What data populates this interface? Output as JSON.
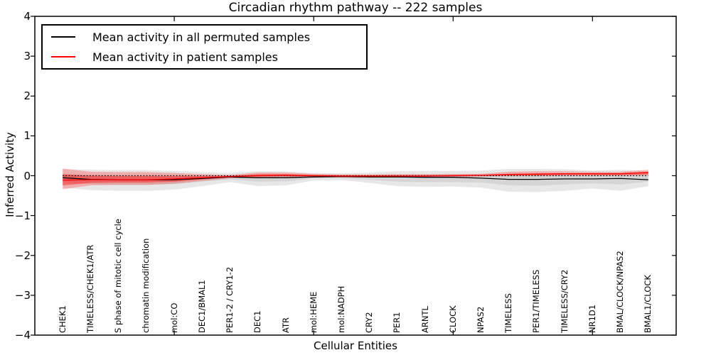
{
  "title": "Circadian rhythm pathway -- 222 samples",
  "legend": {
    "items": [
      {
        "label": "Mean activity in all permuted samples",
        "color": "#000000"
      },
      {
        "label": "Mean activity in patient samples",
        "color": "#ff0000"
      }
    ]
  },
  "axes": {
    "ylabel": "Inferred Activity",
    "xlabel": "Cellular Entities",
    "y_tick_labels": [
      "4",
      "3",
      "2",
      "1",
      "0",
      "−1",
      "−2",
      "−3",
      "−4"
    ],
    "y_tick_values": [
      4,
      3,
      2,
      1,
      0,
      -1,
      -2,
      -3,
      -4
    ],
    "x_major_tick_positions": [
      5,
      10,
      15,
      20
    ]
  },
  "chart_data": {
    "type": "line",
    "title": "Circadian rhythm pathway -- 222 samples",
    "xlabel": "Cellular Entities",
    "ylabel": "Inferred Activity",
    "ylim": [
      -4,
      4
    ],
    "grid": false,
    "legend_position": "upper left",
    "x_tick_rotation": 90,
    "categories": [
      "CHEK1",
      "TIMELESS/CHEK1/ATR",
      "S phase of mitotic cell cycle",
      "chromatin modification",
      "mol:CO",
      "DEC1/BMAL1",
      "PER1-2 / CRY1-2",
      "DEC1",
      "ATR",
      "mol:HEME",
      "mol:NADPH",
      "CRY2",
      "PER1",
      "ARNTL",
      "CLOCK",
      "NPAS2",
      "TIMELESS",
      "PER1/TIMELESS",
      "TIMELESS/CRY2",
      "NR1D1",
      "BMAL/CLOCK/NPAS2",
      "BMAL1/CLOCK"
    ],
    "series": [
      {
        "name": "Mean activity in all permuted samples",
        "color": "#000000",
        "style": "solid",
        "values": [
          -0.05,
          -0.09,
          -0.1,
          -0.1,
          -0.1,
          -0.07,
          -0.03,
          -0.05,
          -0.05,
          -0.03,
          -0.02,
          -0.03,
          -0.03,
          -0.04,
          -0.04,
          -0.06,
          -0.09,
          -0.09,
          -0.08,
          -0.08,
          -0.07,
          -0.1
        ]
      },
      {
        "name": "Mean activity in patient samples",
        "color": "#ff0000",
        "style": "solid",
        "values": [
          -0.11,
          -0.1,
          -0.1,
          -0.1,
          -0.08,
          -0.05,
          -0.02,
          0.0,
          0.01,
          0.0,
          -0.01,
          -0.01,
          -0.01,
          -0.01,
          0.0,
          0.01,
          0.03,
          0.04,
          0.05,
          0.05,
          0.05,
          0.08
        ]
      },
      {
        "name": "zero-reference",
        "color": "#000000",
        "style": "dotted",
        "values": [
          0,
          0,
          0,
          0,
          0,
          0,
          0,
          0,
          0,
          0,
          0,
          0,
          0,
          0,
          0,
          0,
          0,
          0,
          0,
          0,
          0,
          0
        ]
      }
    ],
    "bands": [
      {
        "name": "permuted-outer",
        "color": "#a0a0a0",
        "opacity": 0.25,
        "hi": [
          0.16,
          0.15,
          0.14,
          0.14,
          0.12,
          0.09,
          0.07,
          0.11,
          0.11,
          0.06,
          0.06,
          0.08,
          0.11,
          0.12,
          0.12,
          0.13,
          0.17,
          0.17,
          0.16,
          0.13,
          0.15,
          0.12
        ],
        "lo": [
          -0.3,
          -0.36,
          -0.38,
          -0.38,
          -0.35,
          -0.26,
          -0.16,
          -0.26,
          -0.24,
          -0.12,
          -0.11,
          -0.18,
          -0.26,
          -0.28,
          -0.27,
          -0.3,
          -0.4,
          -0.41,
          -0.38,
          -0.32,
          -0.38,
          -0.26
        ]
      },
      {
        "name": "permuted-inner",
        "color": "#a0a0a0",
        "opacity": 0.25,
        "hi": [
          0.04,
          0.03,
          0.02,
          0.02,
          0.02,
          0.01,
          0.01,
          0.02,
          0.02,
          0.01,
          0.01,
          0.02,
          0.02,
          0.03,
          0.03,
          0.03,
          0.04,
          0.04,
          0.04,
          0.03,
          0.04,
          0.03
        ],
        "lo": [
          -0.17,
          -0.21,
          -0.23,
          -0.23,
          -0.21,
          -0.15,
          -0.09,
          -0.15,
          -0.14,
          -0.07,
          -0.06,
          -0.1,
          -0.15,
          -0.16,
          -0.16,
          -0.17,
          -0.24,
          -0.25,
          -0.22,
          -0.19,
          -0.22,
          -0.15
        ]
      },
      {
        "name": "patient-outer",
        "color": "#ff2a2a",
        "opacity": 0.3,
        "hi": [
          0.18,
          0.1,
          0.09,
          0.09,
          0.07,
          0.04,
          0.02,
          0.08,
          0.08,
          0.05,
          0.03,
          0.03,
          0.04,
          0.04,
          0.04,
          0.05,
          0.1,
          0.11,
          0.11,
          0.1,
          0.1,
          0.15
        ],
        "lo": [
          -0.34,
          -0.24,
          -0.23,
          -0.23,
          -0.2,
          -0.13,
          -0.07,
          -0.04,
          -0.03,
          -0.04,
          -0.04,
          -0.04,
          -0.04,
          -0.04,
          -0.03,
          -0.02,
          -0.01,
          -0.01,
          0.0,
          0.0,
          0.0,
          0.01
        ]
      },
      {
        "name": "patient-inner",
        "color": "#ff0000",
        "opacity": 0.4,
        "hi": [
          0.04,
          0.0,
          -0.01,
          -0.01,
          -0.01,
          -0.01,
          -0.01,
          0.04,
          0.04,
          0.02,
          0.01,
          0.01,
          0.01,
          0.01,
          0.02,
          0.02,
          0.05,
          0.06,
          0.06,
          0.06,
          0.06,
          0.1
        ],
        "lo": [
          -0.24,
          -0.18,
          -0.17,
          -0.17,
          -0.15,
          -0.09,
          -0.04,
          -0.02,
          -0.01,
          -0.02,
          -0.02,
          -0.02,
          -0.02,
          -0.02,
          -0.01,
          0.0,
          0.01,
          0.01,
          0.02,
          0.02,
          0.02,
          0.03
        ]
      }
    ]
  }
}
